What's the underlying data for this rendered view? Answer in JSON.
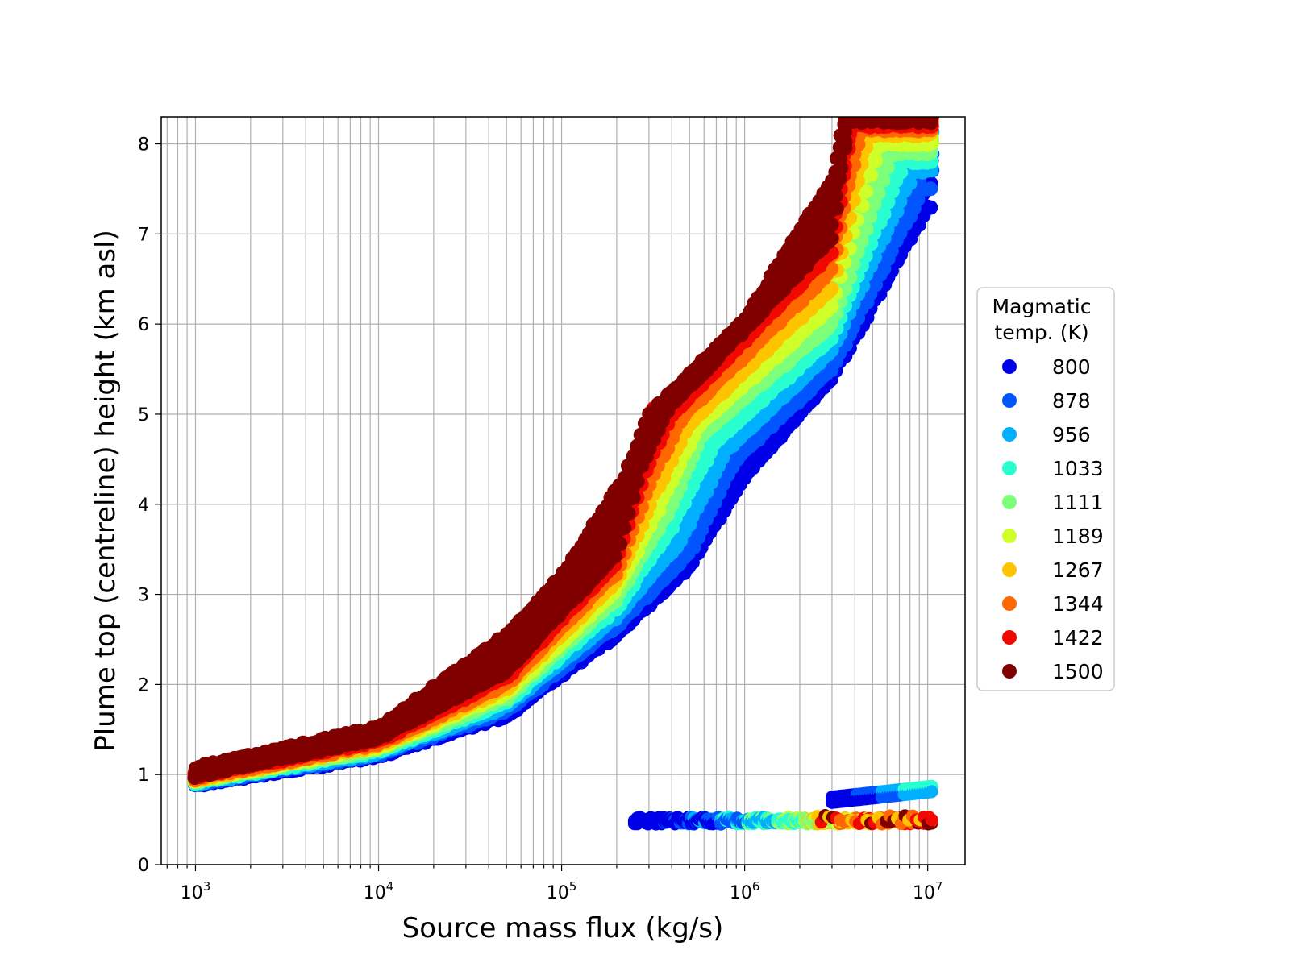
{
  "chart_data": {
    "type": "scatter",
    "title": "",
    "xlabel": "Source mass flux (kg/s)",
    "ylabel": "Plume top (centreline) height (km asl)",
    "xscale": "log",
    "xlim": [
      650,
      16000000
    ],
    "ylim": [
      0,
      8.3
    ],
    "grid": true,
    "x_ticks": [
      {
        "value": 1000,
        "base": "10",
        "exp": "3"
      },
      {
        "value": 10000,
        "base": "10",
        "exp": "4"
      },
      {
        "value": 100000,
        "base": "10",
        "exp": "5"
      },
      {
        "value": 1000000,
        "base": "10",
        "exp": "6"
      },
      {
        "value": 10000000,
        "base": "10",
        "exp": "7"
      }
    ],
    "y_ticks": [
      "0",
      "1",
      "2",
      "3",
      "4",
      "5",
      "6",
      "7",
      "8"
    ],
    "legend": {
      "title_lines": [
        "Magmatic",
        "temp. (K)"
      ],
      "placement": "center-right outside",
      "entries": [
        {
          "label": "800",
          "color": "#0000e8"
        },
        {
          "label": "878",
          "color": "#0055ff"
        },
        {
          "label": "956",
          "color": "#00b0ff"
        },
        {
          "label": "1033",
          "color": "#29ffce"
        },
        {
          "label": "1111",
          "color": "#7dff7a"
        },
        {
          "label": "1189",
          "color": "#ceff29"
        },
        {
          "label": "1267",
          "color": "#ffc400"
        },
        {
          "label": "1344",
          "color": "#ff6800"
        },
        {
          "label": "1422",
          "color": "#f10800"
        },
        {
          "label": "1500",
          "color": "#800000"
        }
      ]
    },
    "series": [
      {
        "name": "800",
        "upper_curve": [
          [
            1000,
            0.95
          ],
          [
            10000,
            1.3
          ],
          [
            50000,
            1.95
          ],
          [
            100000,
            2.5
          ],
          [
            300000,
            3.4
          ],
          [
            800000,
            4.3
          ],
          [
            1000000,
            5.1
          ],
          [
            3000000,
            6.3
          ],
          [
            10000000,
            8.3
          ]
        ],
        "lower_curve": [
          [
            1000,
            0.88
          ],
          [
            10000,
            1.2
          ],
          [
            50000,
            1.65
          ],
          [
            200000,
            2.55
          ],
          [
            500000,
            3.3
          ],
          [
            1000000,
            4.3
          ],
          [
            3000000,
            5.4
          ],
          [
            10000000,
            7.3
          ]
        ]
      },
      {
        "name": "878",
        "upper_curve": [
          [
            1000,
            0.96
          ],
          [
            10000,
            1.32
          ],
          [
            50000,
            2.0
          ],
          [
            100000,
            2.55
          ],
          [
            300000,
            3.5
          ],
          [
            700000,
            4.6
          ],
          [
            1000000,
            5.2
          ],
          [
            3000000,
            6.4
          ],
          [
            9000000,
            8.3
          ]
        ],
        "lower_curve": [
          [
            1000,
            0.89
          ],
          [
            10000,
            1.22
          ],
          [
            50000,
            1.7
          ],
          [
            200000,
            2.65
          ],
          [
            500000,
            3.45
          ],
          [
            900000,
            4.5
          ],
          [
            3000000,
            5.5
          ],
          [
            9500000,
            7.5
          ]
        ]
      },
      {
        "name": "956",
        "upper_curve": [
          [
            1000,
            0.97
          ],
          [
            10000,
            1.34
          ],
          [
            50000,
            2.05
          ],
          [
            100000,
            2.6
          ],
          [
            300000,
            3.6
          ],
          [
            600000,
            4.7
          ],
          [
            1000000,
            5.3
          ],
          [
            3000000,
            6.55
          ],
          [
            8000000,
            8.3
          ]
        ],
        "lower_curve": [
          [
            1000,
            0.9
          ],
          [
            10000,
            1.24
          ],
          [
            50000,
            1.75
          ],
          [
            200000,
            2.75
          ],
          [
            450000,
            3.6
          ],
          [
            800000,
            4.6
          ],
          [
            3000000,
            5.7
          ],
          [
            8500000,
            7.7
          ]
        ]
      },
      {
        "name": "1033",
        "upper_curve": [
          [
            1000,
            0.98
          ],
          [
            10000,
            1.36
          ],
          [
            50000,
            2.1
          ],
          [
            100000,
            2.7
          ],
          [
            300000,
            3.7
          ],
          [
            500000,
            4.8
          ],
          [
            1000000,
            5.4
          ],
          [
            3000000,
            6.7
          ],
          [
            7000000,
            8.3
          ]
        ],
        "lower_curve": [
          [
            1000,
            0.91
          ],
          [
            10000,
            1.26
          ],
          [
            50000,
            1.8
          ],
          [
            200000,
            2.85
          ],
          [
            400000,
            3.75
          ],
          [
            700000,
            4.7
          ],
          [
            3000000,
            5.85
          ],
          [
            7500000,
            7.8
          ]
        ]
      },
      {
        "name": "1111",
        "upper_curve": [
          [
            1000,
            0.99
          ],
          [
            10000,
            1.38
          ],
          [
            50000,
            2.15
          ],
          [
            100000,
            2.75
          ],
          [
            280000,
            3.8
          ],
          [
            450000,
            4.85
          ],
          [
            1000000,
            5.5
          ],
          [
            3000000,
            6.85
          ],
          [
            6000000,
            8.3
          ]
        ],
        "lower_curve": [
          [
            1000,
            0.92
          ],
          [
            10000,
            1.28
          ],
          [
            50000,
            1.85
          ],
          [
            200000,
            2.95
          ],
          [
            380000,
            3.9
          ],
          [
            600000,
            4.8
          ],
          [
            3000000,
            6.0
          ],
          [
            6500000,
            7.9
          ]
        ]
      },
      {
        "name": "1189",
        "upper_curve": [
          [
            1000,
            1.0
          ],
          [
            10000,
            1.4
          ],
          [
            50000,
            2.2
          ],
          [
            100000,
            2.8
          ],
          [
            260000,
            3.9
          ],
          [
            400000,
            4.9
          ],
          [
            1000000,
            5.6
          ],
          [
            3000000,
            7.0
          ],
          [
            5000000,
            8.3
          ]
        ],
        "lower_curve": [
          [
            1000,
            0.93
          ],
          [
            10000,
            1.3
          ],
          [
            50000,
            1.9
          ],
          [
            200000,
            3.05
          ],
          [
            350000,
            4.0
          ],
          [
            550000,
            4.85
          ],
          [
            3000000,
            6.2
          ],
          [
            5500000,
            8.0
          ]
        ]
      },
      {
        "name": "1267",
        "upper_curve": [
          [
            1000,
            1.01
          ],
          [
            10000,
            1.42
          ],
          [
            50000,
            2.25
          ],
          [
            100000,
            2.9
          ],
          [
            250000,
            4.0
          ],
          [
            370000,
            4.95
          ],
          [
            1000000,
            5.7
          ],
          [
            3000000,
            7.15
          ],
          [
            4500000,
            8.3
          ]
        ],
        "lower_curve": [
          [
            1000,
            0.94
          ],
          [
            10000,
            1.32
          ],
          [
            50000,
            1.95
          ],
          [
            200000,
            3.15
          ],
          [
            320000,
            4.1
          ],
          [
            500000,
            4.9
          ],
          [
            3000000,
            6.4
          ],
          [
            4800000,
            8.1
          ]
        ]
      },
      {
        "name": "1344",
        "upper_curve": [
          [
            1000,
            1.03
          ],
          [
            10000,
            1.44
          ],
          [
            50000,
            2.3
          ],
          [
            100000,
            3.0
          ],
          [
            240000,
            4.1
          ],
          [
            340000,
            5.0
          ],
          [
            1000000,
            5.8
          ],
          [
            3000000,
            7.3
          ],
          [
            4000000,
            8.3
          ]
        ],
        "lower_curve": [
          [
            1000,
            0.95
          ],
          [
            10000,
            1.34
          ],
          [
            50000,
            2.0
          ],
          [
            200000,
            3.25
          ],
          [
            300000,
            4.2
          ],
          [
            450000,
            4.95
          ],
          [
            3000000,
            6.6
          ],
          [
            4300000,
            8.15
          ]
        ]
      },
      {
        "name": "1422",
        "upper_curve": [
          [
            1000,
            1.05
          ],
          [
            10000,
            1.47
          ],
          [
            50000,
            2.38
          ],
          [
            100000,
            3.05
          ],
          [
            230000,
            4.2
          ],
          [
            320000,
            5.05
          ],
          [
            1000000,
            5.95
          ],
          [
            3000000,
            7.45
          ],
          [
            3700000,
            8.3
          ]
        ],
        "lower_curve": [
          [
            1000,
            0.97
          ],
          [
            10000,
            1.37
          ],
          [
            50000,
            2.08
          ],
          [
            200000,
            3.35
          ],
          [
            280000,
            4.3
          ],
          [
            400000,
            5.0
          ],
          [
            3000000,
            6.8
          ],
          [
            3900000,
            8.2
          ]
        ]
      },
      {
        "name": "1500",
        "upper_curve": [
          [
            1000,
            1.08
          ],
          [
            10000,
            1.52
          ],
          [
            50000,
            2.55
          ],
          [
            100000,
            3.2
          ],
          [
            220000,
            4.3
          ],
          [
            300000,
            5.0
          ],
          [
            1000000,
            6.05
          ],
          [
            3000000,
            7.6
          ],
          [
            3500000,
            8.3
          ]
        ],
        "lower_curve": [
          [
            1000,
            0.98
          ],
          [
            10000,
            1.4
          ],
          [
            50000,
            2.15
          ],
          [
            200000,
            3.45
          ],
          [
            270000,
            4.4
          ],
          [
            380000,
            5.05
          ],
          [
            3000000,
            6.95
          ],
          [
            3700000,
            8.25
          ]
        ]
      }
    ],
    "low_branch": {
      "description": "secondary cluster near 0.4-0.9 km for 2.5e5 to 1e7 kg/s",
      "band_y": [
        0.4,
        0.58
      ],
      "x_range": [
        250000,
        10500000
      ],
      "upper_cluster_x": [
        3000000,
        10500000
      ],
      "upper_cluster_y": [
        0.65,
        0.9
      ]
    }
  }
}
